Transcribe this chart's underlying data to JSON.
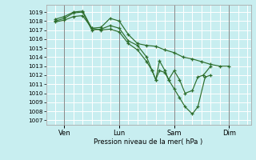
{
  "bg_color": "#c8eef0",
  "grid_color": "#ffffff",
  "line_color": "#2d6e2d",
  "xlabel": "Pression niveau de la mer( hPa )",
  "ylim": [
    1006.5,
    1019.8
  ],
  "yticks": [
    1007,
    1008,
    1009,
    1010,
    1011,
    1012,
    1013,
    1014,
    1015,
    1016,
    1017,
    1018,
    1019
  ],
  "xtick_labels": [
    "Ven",
    "Lun",
    "Sam",
    "Dim"
  ],
  "xtick_positions": [
    1,
    4,
    7,
    10
  ],
  "xlim": [
    0,
    11.2
  ],
  "line1": [
    [
      0.5,
      1018.2
    ],
    [
      1.0,
      1018.5
    ],
    [
      1.5,
      1019.0
    ],
    [
      2.0,
      1019.1
    ],
    [
      2.5,
      1017.2
    ],
    [
      3.0,
      1017.3
    ],
    [
      3.5,
      1018.3
    ],
    [
      4.0,
      1018.0
    ],
    [
      4.5,
      1016.5
    ],
    [
      5.0,
      1015.5
    ],
    [
      5.5,
      1015.3
    ],
    [
      6.0,
      1015.2
    ],
    [
      6.5,
      1014.8
    ],
    [
      7.0,
      1014.5
    ],
    [
      7.5,
      1014.0
    ],
    [
      8.0,
      1013.8
    ],
    [
      8.5,
      1013.5
    ],
    [
      9.0,
      1013.2
    ],
    [
      9.5,
      1013.0
    ],
    [
      10.0,
      1013.0
    ]
  ],
  "line2": [
    [
      0.5,
      1018.0
    ],
    [
      1.0,
      1018.3
    ],
    [
      1.5,
      1018.9
    ],
    [
      2.0,
      1019.0
    ],
    [
      2.5,
      1017.0
    ],
    [
      3.0,
      1017.1
    ],
    [
      3.5,
      1017.5
    ],
    [
      4.0,
      1017.2
    ],
    [
      4.5,
      1015.8
    ],
    [
      5.0,
      1015.3
    ],
    [
      5.5,
      1014.0
    ],
    [
      5.8,
      1012.5
    ],
    [
      6.0,
      1011.5
    ],
    [
      6.2,
      1013.6
    ],
    [
      6.5,
      1012.5
    ],
    [
      6.7,
      1011.5
    ],
    [
      7.0,
      1012.5
    ],
    [
      7.3,
      1011.5
    ],
    [
      7.6,
      1010.0
    ],
    [
      8.0,
      1010.3
    ],
    [
      8.3,
      1011.8
    ],
    [
      8.6,
      1012.0
    ],
    [
      9.0,
      1013.0
    ]
  ],
  "line3": [
    [
      0.5,
      1017.9
    ],
    [
      1.0,
      1018.1
    ],
    [
      1.5,
      1018.5
    ],
    [
      2.0,
      1018.6
    ],
    [
      2.5,
      1017.2
    ],
    [
      3.0,
      1017.0
    ],
    [
      3.5,
      1017.1
    ],
    [
      4.0,
      1016.8
    ],
    [
      4.5,
      1015.5
    ],
    [
      5.0,
      1014.8
    ],
    [
      5.5,
      1013.5
    ],
    [
      5.8,
      1012.5
    ],
    [
      6.0,
      1011.5
    ],
    [
      6.2,
      1012.5
    ],
    [
      6.5,
      1012.3
    ],
    [
      6.7,
      1011.5
    ],
    [
      7.0,
      1010.5
    ],
    [
      7.3,
      1009.5
    ],
    [
      7.6,
      1008.5
    ],
    [
      8.0,
      1007.7
    ],
    [
      8.3,
      1008.5
    ],
    [
      8.7,
      1011.8
    ],
    [
      9.0,
      1012.0
    ]
  ]
}
